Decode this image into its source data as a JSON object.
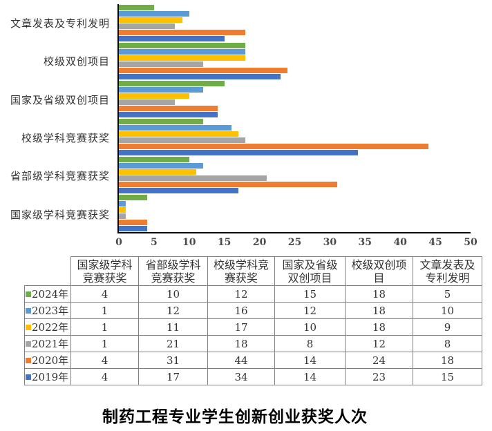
{
  "chart_data": {
    "type": "bar",
    "orientation": "horizontal",
    "title": "制药工程专业学生创新创业获奖人次",
    "categories": [
      "文章发表及专利发明",
      "校级双创项目",
      "国家及省级双创项目",
      "校级学科竞赛获奖",
      "省部级学科竞赛获奖",
      "国家级学科竞赛获奖"
    ],
    "series": [
      {
        "name": "2024年",
        "color": "#70AD47",
        "values": [
          5,
          18,
          15,
          12,
          10,
          4
        ]
      },
      {
        "name": "2023年",
        "color": "#5B9BD5",
        "values": [
          10,
          18,
          12,
          16,
          12,
          1
        ]
      },
      {
        "name": "2022年",
        "color": "#FFC000",
        "values": [
          9,
          18,
          10,
          17,
          11,
          1
        ]
      },
      {
        "name": "2021年",
        "color": "#A5A5A5",
        "values": [
          8,
          12,
          8,
          18,
          21,
          1
        ]
      },
      {
        "name": "2020年",
        "color": "#ED7D31",
        "values": [
          18,
          24,
          14,
          44,
          31,
          4
        ]
      },
      {
        "name": "2019年",
        "color": "#4472C4",
        "values": [
          15,
          23,
          14,
          34,
          17,
          4
        ]
      }
    ],
    "xlim": [
      0,
      50
    ],
    "x_ticks": [
      0,
      5,
      10,
      15,
      20,
      25,
      30,
      35,
      40,
      45,
      50
    ],
    "grid": false,
    "legend_position": "table-row-markers"
  },
  "table": {
    "corner_label": "",
    "columns": [
      "国家级学科竞赛获奖",
      "省部级学科竞赛获奖",
      "校级学科竞赛获奖",
      "国家及省级双创项目",
      "校级双创项目",
      "文章发表及专利发明"
    ],
    "rows": [
      {
        "label": "2024年",
        "marker_color": "#70AD47",
        "values": [
          4,
          10,
          12,
          15,
          18,
          5
        ]
      },
      {
        "label": "2023年",
        "marker_color": "#5B9BD5",
        "values": [
          1,
          12,
          16,
          12,
          18,
          10
        ]
      },
      {
        "label": "2022年",
        "marker_color": "#FFC000",
        "values": [
          1,
          11,
          17,
          10,
          18,
          9
        ]
      },
      {
        "label": "2021年",
        "marker_color": "#A5A5A5",
        "values": [
          1,
          21,
          18,
          8,
          12,
          8
        ]
      },
      {
        "label": "2020年",
        "marker_color": "#ED7D31",
        "values": [
          4,
          31,
          44,
          14,
          24,
          18
        ]
      },
      {
        "label": "2019年",
        "marker_color": "#4472C4",
        "values": [
          4,
          17,
          34,
          14,
          23,
          15
        ]
      }
    ]
  },
  "caption": "制药工程专业学生创新创业获奖人次",
  "colors": {
    "axis": "#000000",
    "table_border": "#808080",
    "tick_text": "#4a4a4a",
    "body_text": "#333333",
    "caption_text": "#000000"
  }
}
